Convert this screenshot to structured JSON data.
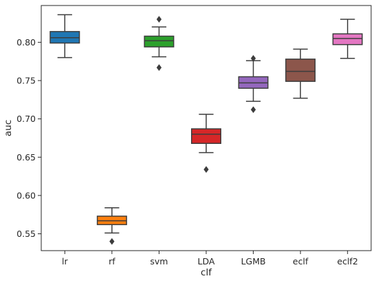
{
  "chart_data": {
    "type": "box",
    "xlabel": "clf",
    "ylabel": "auc",
    "ylim": [
      0.528,
      0.848
    ],
    "yticks": [
      0.55,
      0.6,
      0.65,
      0.7,
      0.75,
      0.8
    ],
    "ytick_labels": [
      "0.55",
      "0.60",
      "0.65",
      "0.70",
      "0.75",
      "0.80"
    ],
    "grid": false,
    "categories": [
      "lr",
      "rf",
      "svm",
      "LDA",
      "LGMB",
      "eclf",
      "eclf2"
    ],
    "boxes": [
      {
        "category": "lr",
        "color": "#1f77b4",
        "whisker_low": 0.78,
        "q1": 0.799,
        "median": 0.806,
        "q3": 0.814,
        "whisker_high": 0.836,
        "outliers": []
      },
      {
        "category": "rf",
        "color": "#ff7f0e",
        "whisker_low": 0.551,
        "q1": 0.562,
        "median": 0.567,
        "q3": 0.573,
        "whisker_high": 0.584,
        "outliers": [
          0.54
        ]
      },
      {
        "category": "svm",
        "color": "#2ca02c",
        "whisker_low": 0.781,
        "q1": 0.794,
        "median": 0.802,
        "q3": 0.808,
        "whisker_high": 0.82,
        "outliers": [
          0.83,
          0.767
        ]
      },
      {
        "category": "LDA",
        "color": "#d62728",
        "whisker_low": 0.656,
        "q1": 0.668,
        "median": 0.68,
        "q3": 0.687,
        "whisker_high": 0.706,
        "outliers": [
          0.634
        ]
      },
      {
        "category": "LGMB",
        "color": "#9467bd",
        "whisker_low": 0.723,
        "q1": 0.74,
        "median": 0.747,
        "q3": 0.755,
        "whisker_high": 0.776,
        "outliers": [
          0.779,
          0.712
        ]
      },
      {
        "category": "eclf",
        "color": "#8c564b",
        "whisker_low": 0.727,
        "q1": 0.749,
        "median": 0.762,
        "q3": 0.778,
        "whisker_high": 0.791,
        "outliers": []
      },
      {
        "category": "eclf2",
        "color": "#e377c2",
        "whisker_low": 0.779,
        "q1": 0.797,
        "median": 0.805,
        "q3": 0.811,
        "whisker_high": 0.83,
        "outliers": []
      }
    ]
  }
}
